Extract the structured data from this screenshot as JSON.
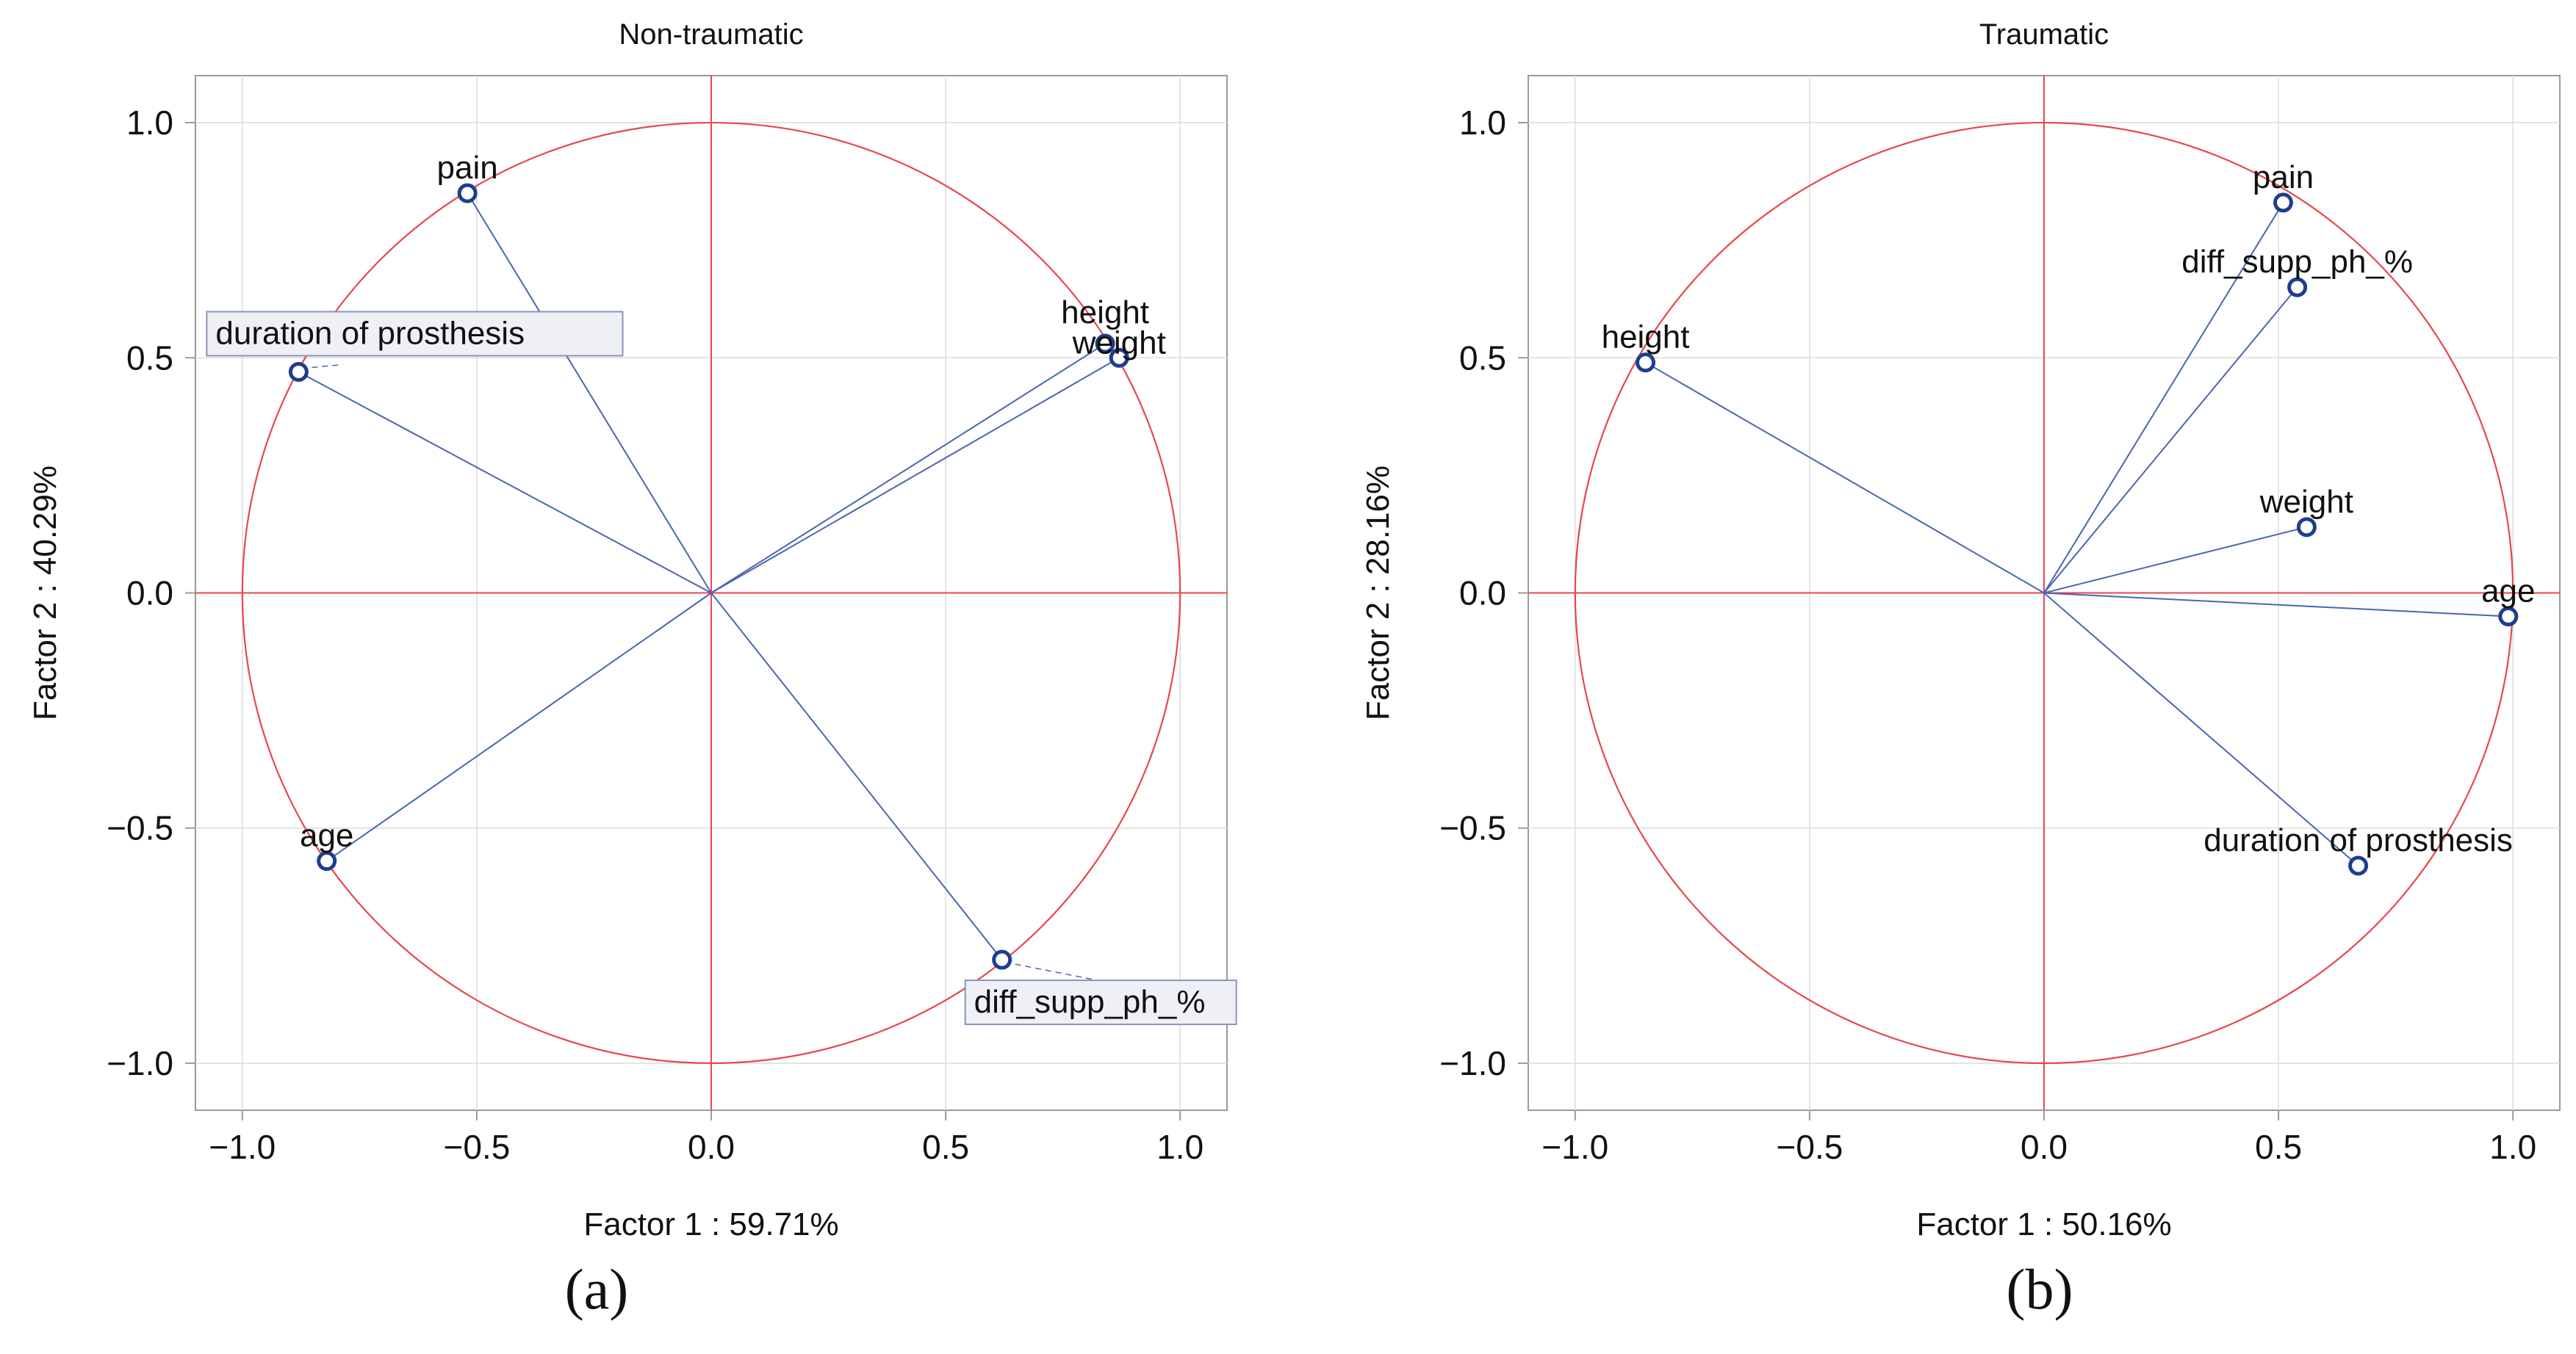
{
  "colors": {
    "circle": "#e8474d",
    "axis_line": "#e8474d",
    "vector": "#4a66b0",
    "marker": "#1f3d8f",
    "grid": "#dcdcdc",
    "frame": "#9a9a9a",
    "label_box_fill": "#eef0f6",
    "label_box_border": "#8a94b8",
    "text": "#111111"
  },
  "chart_data": [
    {
      "type": "scatter",
      "subtype": "pca-correlation-circle",
      "panel_label": "(a)",
      "title": "Non-traumatic",
      "xlabel": "Factor  1 : 59.71%",
      "ylabel": "Factor 2 : 40.29%",
      "xlim": [
        -1.1,
        1.1
      ],
      "ylim": [
        -1.1,
        1.1
      ],
      "xticks": [
        -1.0,
        -0.5,
        0.0,
        0.5,
        1.0
      ],
      "yticks": [
        -1.0,
        -0.5,
        0.0,
        0.5,
        1.0
      ],
      "xtick_labels": [
        "−1.0",
        "−0.5",
        "0.0",
        "0.5",
        "1.0"
      ],
      "ytick_labels": [
        "−1.0",
        "−0.5",
        "0.0",
        "0.5",
        "1.0"
      ],
      "grid": true,
      "points": [
        {
          "name": "pain",
          "x": -0.52,
          "y": 0.85,
          "label_pos": "above",
          "boxed": false
        },
        {
          "name": "duration of prosthesis",
          "x": -0.88,
          "y": 0.47,
          "label_pos": "box-upper-right",
          "boxed": true
        },
        {
          "name": "height",
          "x": 0.84,
          "y": 0.53,
          "label_pos": "above",
          "boxed": false
        },
        {
          "name": "weight",
          "x": 0.87,
          "y": 0.5,
          "label_pos": "above",
          "boxed": false
        },
        {
          "name": "age",
          "x": -0.82,
          "y": -0.57,
          "label_pos": "above",
          "boxed": false
        },
        {
          "name": "diff_supp_ph_%",
          "x": 0.62,
          "y": -0.78,
          "label_pos": "box-below-right",
          "boxed": true
        }
      ]
    },
    {
      "type": "scatter",
      "subtype": "pca-correlation-circle",
      "panel_label": "(b)",
      "title": "Traumatic",
      "xlabel": "Factor 1 : 50.16%",
      "ylabel": "Factor 2 : 28.16%",
      "xlim": [
        -1.1,
        1.1
      ],
      "ylim": [
        -1.1,
        1.1
      ],
      "xticks": [
        -1.0,
        -0.5,
        0.0,
        0.5,
        1.0
      ],
      "yticks": [
        -1.0,
        -0.5,
        0.0,
        0.5,
        1.0
      ],
      "xtick_labels": [
        "−1.0",
        "−0.5",
        "0.0",
        "0.5",
        "1.0"
      ],
      "ytick_labels": [
        "−1.0",
        "−0.5",
        "0.0",
        "0.5",
        "1.0"
      ],
      "grid": true,
      "points": [
        {
          "name": "pain",
          "x": 0.51,
          "y": 0.83,
          "label_pos": "above",
          "boxed": false
        },
        {
          "name": "diff_supp_ph_%",
          "x": 0.54,
          "y": 0.65,
          "label_pos": "above",
          "boxed": false
        },
        {
          "name": "height",
          "x": -0.85,
          "y": 0.49,
          "label_pos": "above",
          "boxed": false
        },
        {
          "name": "weight",
          "x": 0.56,
          "y": 0.14,
          "label_pos": "above",
          "boxed": false
        },
        {
          "name": "age",
          "x": 0.99,
          "y": -0.05,
          "label_pos": "above",
          "boxed": false
        },
        {
          "name": "duration of prosthesis",
          "x": 0.67,
          "y": -0.58,
          "label_pos": "above",
          "boxed": false
        }
      ]
    }
  ]
}
